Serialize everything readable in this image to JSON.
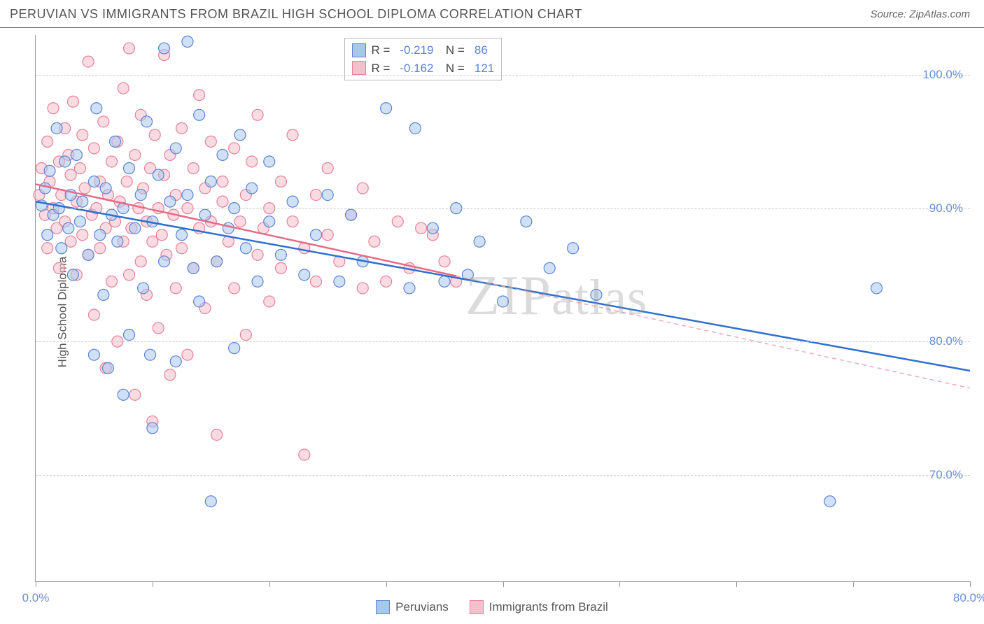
{
  "header": {
    "title": "PERUVIAN VS IMMIGRANTS FROM BRAZIL HIGH SCHOOL DIPLOMA CORRELATION CHART",
    "source": "Source: ZipAtlas.com"
  },
  "chart": {
    "type": "scatter",
    "ylabel": "High School Diploma",
    "watermark": "ZIPatlas",
    "background_color": "#ffffff",
    "grid_color": "#cccccc",
    "axis_color": "#999999",
    "ylim": [
      62,
      103
    ],
    "xlim": [
      0,
      80
    ],
    "yticks": [
      70,
      80,
      90,
      100
    ],
    "ytick_labels": [
      "70.0%",
      "80.0%",
      "90.0%",
      "100.0%"
    ],
    "xticks": [
      0,
      10,
      20,
      30,
      40,
      50,
      60,
      70,
      80
    ],
    "xtick_labels_shown": {
      "0": "0.0%",
      "80": "80.0%"
    },
    "marker_radius": 8,
    "marker_opacity": 0.55,
    "marker_stroke_width": 1.2,
    "series": [
      {
        "name": "Peruvians",
        "color_fill": "#a9c6ec",
        "color_stroke": "#5b84d8",
        "R": "-0.219",
        "N": "86",
        "regression": {
          "x1": 0,
          "y1": 90.5,
          "x2": 80,
          "y2": 77.8,
          "solid_until_x": 80,
          "line_color": "#2f6fd0",
          "line_width": 2.5
        },
        "points": [
          [
            0.5,
            90.2
          ],
          [
            0.8,
            91.5
          ],
          [
            1.0,
            88.0
          ],
          [
            1.2,
            92.8
          ],
          [
            1.5,
            89.5
          ],
          [
            1.8,
            96.0
          ],
          [
            2.0,
            90.0
          ],
          [
            2.2,
            87.0
          ],
          [
            2.5,
            93.5
          ],
          [
            2.8,
            88.5
          ],
          [
            3.0,
            91.0
          ],
          [
            3.2,
            85.0
          ],
          [
            3.5,
            94.0
          ],
          [
            3.8,
            89.0
          ],
          [
            4.0,
            90.5
          ],
          [
            4.5,
            86.5
          ],
          [
            5.0,
            92.0
          ],
          [
            5.0,
            79.0
          ],
          [
            5.2,
            97.5
          ],
          [
            5.5,
            88.0
          ],
          [
            5.8,
            83.5
          ],
          [
            6.0,
            91.5
          ],
          [
            6.2,
            78.0
          ],
          [
            6.5,
            89.5
          ],
          [
            6.8,
            95.0
          ],
          [
            7.0,
            87.5
          ],
          [
            7.5,
            90.0
          ],
          [
            7.5,
            76.0
          ],
          [
            8.0,
            93.0
          ],
          [
            8.0,
            80.5
          ],
          [
            8.5,
            88.5
          ],
          [
            9.0,
            91.0
          ],
          [
            9.2,
            84.0
          ],
          [
            9.5,
            96.5
          ],
          [
            9.8,
            79.0
          ],
          [
            10.0,
            89.0
          ],
          [
            10.0,
            73.5
          ],
          [
            10.5,
            92.5
          ],
          [
            11.0,
            86.0
          ],
          [
            11.0,
            102.0
          ],
          [
            11.5,
            90.5
          ],
          [
            12.0,
            94.5
          ],
          [
            12.0,
            78.5
          ],
          [
            12.5,
            88.0
          ],
          [
            13.0,
            91.0
          ],
          [
            13.0,
            102.5
          ],
          [
            13.5,
            85.5
          ],
          [
            14.0,
            97.0
          ],
          [
            14.0,
            83.0
          ],
          [
            14.5,
            89.5
          ],
          [
            15.0,
            92.0
          ],
          [
            15.0,
            68.0
          ],
          [
            15.5,
            86.0
          ],
          [
            16.0,
            94.0
          ],
          [
            16.5,
            88.5
          ],
          [
            17.0,
            90.0
          ],
          [
            17.0,
            79.5
          ],
          [
            17.5,
            95.5
          ],
          [
            18.0,
            87.0
          ],
          [
            18.5,
            91.5
          ],
          [
            19.0,
            84.5
          ],
          [
            20.0,
            89.0
          ],
          [
            20.0,
            93.5
          ],
          [
            21.0,
            86.5
          ],
          [
            22.0,
            90.5
          ],
          [
            23.0,
            85.0
          ],
          [
            24.0,
            88.0
          ],
          [
            25.0,
            91.0
          ],
          [
            26.0,
            84.5
          ],
          [
            27.0,
            89.5
          ],
          [
            28.0,
            86.0
          ],
          [
            30.0,
            97.5
          ],
          [
            32.0,
            84.0
          ],
          [
            32.5,
            96.0
          ],
          [
            34.0,
            88.5
          ],
          [
            35.0,
            84.5
          ],
          [
            36.0,
            90.0
          ],
          [
            37.0,
            85.0
          ],
          [
            38.0,
            87.5
          ],
          [
            40.0,
            83.0
          ],
          [
            42.0,
            89.0
          ],
          [
            44.0,
            85.5
          ],
          [
            46.0,
            87.0
          ],
          [
            48.0,
            83.5
          ],
          [
            68.0,
            68.0
          ],
          [
            72.0,
            84.0
          ]
        ]
      },
      {
        "name": "Immigrants from Brazil",
        "color_fill": "#f4c0cb",
        "color_stroke": "#e97f9a",
        "R": "-0.162",
        "N": "121",
        "regression": {
          "x1": 0,
          "y1": 91.8,
          "x2": 80,
          "y2": 76.5,
          "solid_until_x": 36,
          "line_color": "#e56b88",
          "line_width": 2.5,
          "dash_color": "#f0a8b8"
        },
        "points": [
          [
            0.3,
            91.0
          ],
          [
            0.5,
            93.0
          ],
          [
            0.8,
            89.5
          ],
          [
            1.0,
            95.0
          ],
          [
            1.0,
            87.0
          ],
          [
            1.2,
            92.0
          ],
          [
            1.5,
            90.0
          ],
          [
            1.5,
            97.5
          ],
          [
            1.8,
            88.5
          ],
          [
            2.0,
            93.5
          ],
          [
            2.0,
            85.5
          ],
          [
            2.2,
            91.0
          ],
          [
            2.5,
            96.0
          ],
          [
            2.5,
            89.0
          ],
          [
            2.8,
            94.0
          ],
          [
            3.0,
            87.5
          ],
          [
            3.0,
            92.5
          ],
          [
            3.2,
            98.0
          ],
          [
            3.5,
            90.5
          ],
          [
            3.5,
            85.0
          ],
          [
            3.8,
            93.0
          ],
          [
            4.0,
            88.0
          ],
          [
            4.0,
            95.5
          ],
          [
            4.2,
            91.5
          ],
          [
            4.5,
            86.5
          ],
          [
            4.5,
            101.0
          ],
          [
            4.8,
            89.5
          ],
          [
            5.0,
            94.5
          ],
          [
            5.0,
            82.0
          ],
          [
            5.2,
            90.0
          ],
          [
            5.5,
            92.0
          ],
          [
            5.5,
            87.0
          ],
          [
            5.8,
            96.5
          ],
          [
            6.0,
            88.5
          ],
          [
            6.0,
            78.0
          ],
          [
            6.2,
            91.0
          ],
          [
            6.5,
            93.5
          ],
          [
            6.5,
            84.5
          ],
          [
            6.8,
            89.0
          ],
          [
            7.0,
            95.0
          ],
          [
            7.0,
            80.0
          ],
          [
            7.2,
            90.5
          ],
          [
            7.5,
            87.5
          ],
          [
            7.5,
            99.0
          ],
          [
            7.8,
            92.0
          ],
          [
            8.0,
            85.0
          ],
          [
            8.0,
            102.0
          ],
          [
            8.2,
            88.5
          ],
          [
            8.5,
            94.0
          ],
          [
            8.5,
            76.0
          ],
          [
            8.8,
            90.0
          ],
          [
            9.0,
            86.0
          ],
          [
            9.0,
            97.0
          ],
          [
            9.2,
            91.5
          ],
          [
            9.5,
            83.5
          ],
          [
            9.5,
            89.0
          ],
          [
            9.8,
            93.0
          ],
          [
            10.0,
            87.5
          ],
          [
            10.0,
            74.0
          ],
          [
            10.2,
            95.5
          ],
          [
            10.5,
            90.0
          ],
          [
            10.5,
            81.0
          ],
          [
            10.8,
            88.0
          ],
          [
            11.0,
            92.5
          ],
          [
            11.0,
            101.5
          ],
          [
            11.2,
            86.5
          ],
          [
            11.5,
            94.0
          ],
          [
            11.5,
            77.5
          ],
          [
            11.8,
            89.5
          ],
          [
            12.0,
            91.0
          ],
          [
            12.0,
            84.0
          ],
          [
            12.5,
            96.0
          ],
          [
            12.5,
            87.0
          ],
          [
            13.0,
            90.0
          ],
          [
            13.0,
            79.0
          ],
          [
            13.5,
            93.0
          ],
          [
            13.5,
            85.5
          ],
          [
            14.0,
            88.5
          ],
          [
            14.0,
            98.5
          ],
          [
            14.5,
            91.5
          ],
          [
            14.5,
            82.5
          ],
          [
            15.0,
            89.0
          ],
          [
            15.0,
            95.0
          ],
          [
            15.5,
            86.0
          ],
          [
            15.5,
            73.0
          ],
          [
            16.0,
            90.5
          ],
          [
            16.0,
            92.0
          ],
          [
            16.5,
            87.5
          ],
          [
            17.0,
            94.5
          ],
          [
            17.0,
            84.0
          ],
          [
            17.5,
            89.0
          ],
          [
            18.0,
            91.0
          ],
          [
            18.0,
            80.5
          ],
          [
            18.5,
            93.5
          ],
          [
            19.0,
            86.5
          ],
          [
            19.0,
            97.0
          ],
          [
            19.5,
            88.5
          ],
          [
            20.0,
            90.0
          ],
          [
            20.0,
            83.0
          ],
          [
            21.0,
            92.0
          ],
          [
            21.0,
            85.5
          ],
          [
            22.0,
            89.0
          ],
          [
            22.0,
            95.5
          ],
          [
            23.0,
            87.0
          ],
          [
            23.0,
            71.5
          ],
          [
            24.0,
            91.0
          ],
          [
            24.0,
            84.5
          ],
          [
            25.0,
            88.0
          ],
          [
            25.0,
            93.0
          ],
          [
            26.0,
            86.0
          ],
          [
            27.0,
            89.5
          ],
          [
            28.0,
            84.0
          ],
          [
            28.0,
            91.5
          ],
          [
            29.0,
            87.5
          ],
          [
            30.0,
            84.5
          ],
          [
            31.0,
            89.0
          ],
          [
            32.0,
            85.5
          ],
          [
            33.0,
            88.5
          ],
          [
            34.0,
            88.0
          ],
          [
            35.0,
            86.0
          ],
          [
            36.0,
            84.5
          ]
        ]
      }
    ],
    "bottom_legend": [
      {
        "label": "Peruvians"
      },
      {
        "label": "Immigrants from Brazil"
      }
    ]
  }
}
